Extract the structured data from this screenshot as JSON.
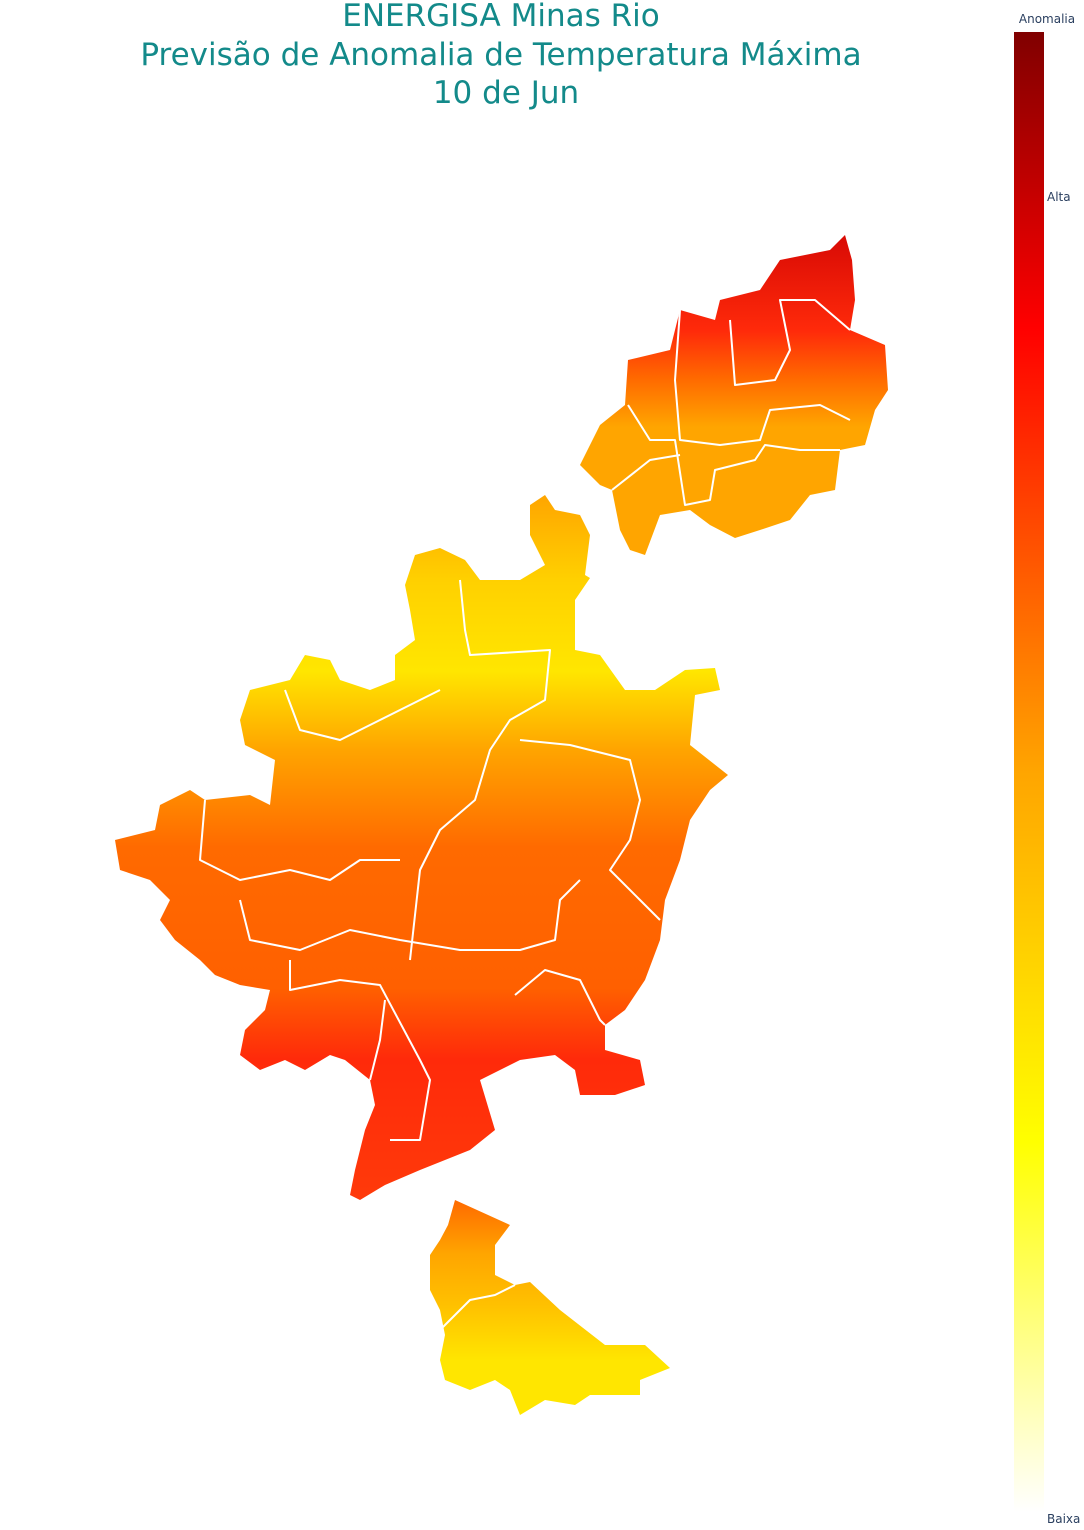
{
  "header": {
    "title_lines": [
      "ENERGISA Minas Rio",
      "Previsão de Anomalia de Temperatura Máxima",
      "10 de Jun"
    ]
  },
  "colorbar": {
    "title": "Anomalia",
    "labels": [
      "Alta",
      "Baixa"
    ]
  }
}
